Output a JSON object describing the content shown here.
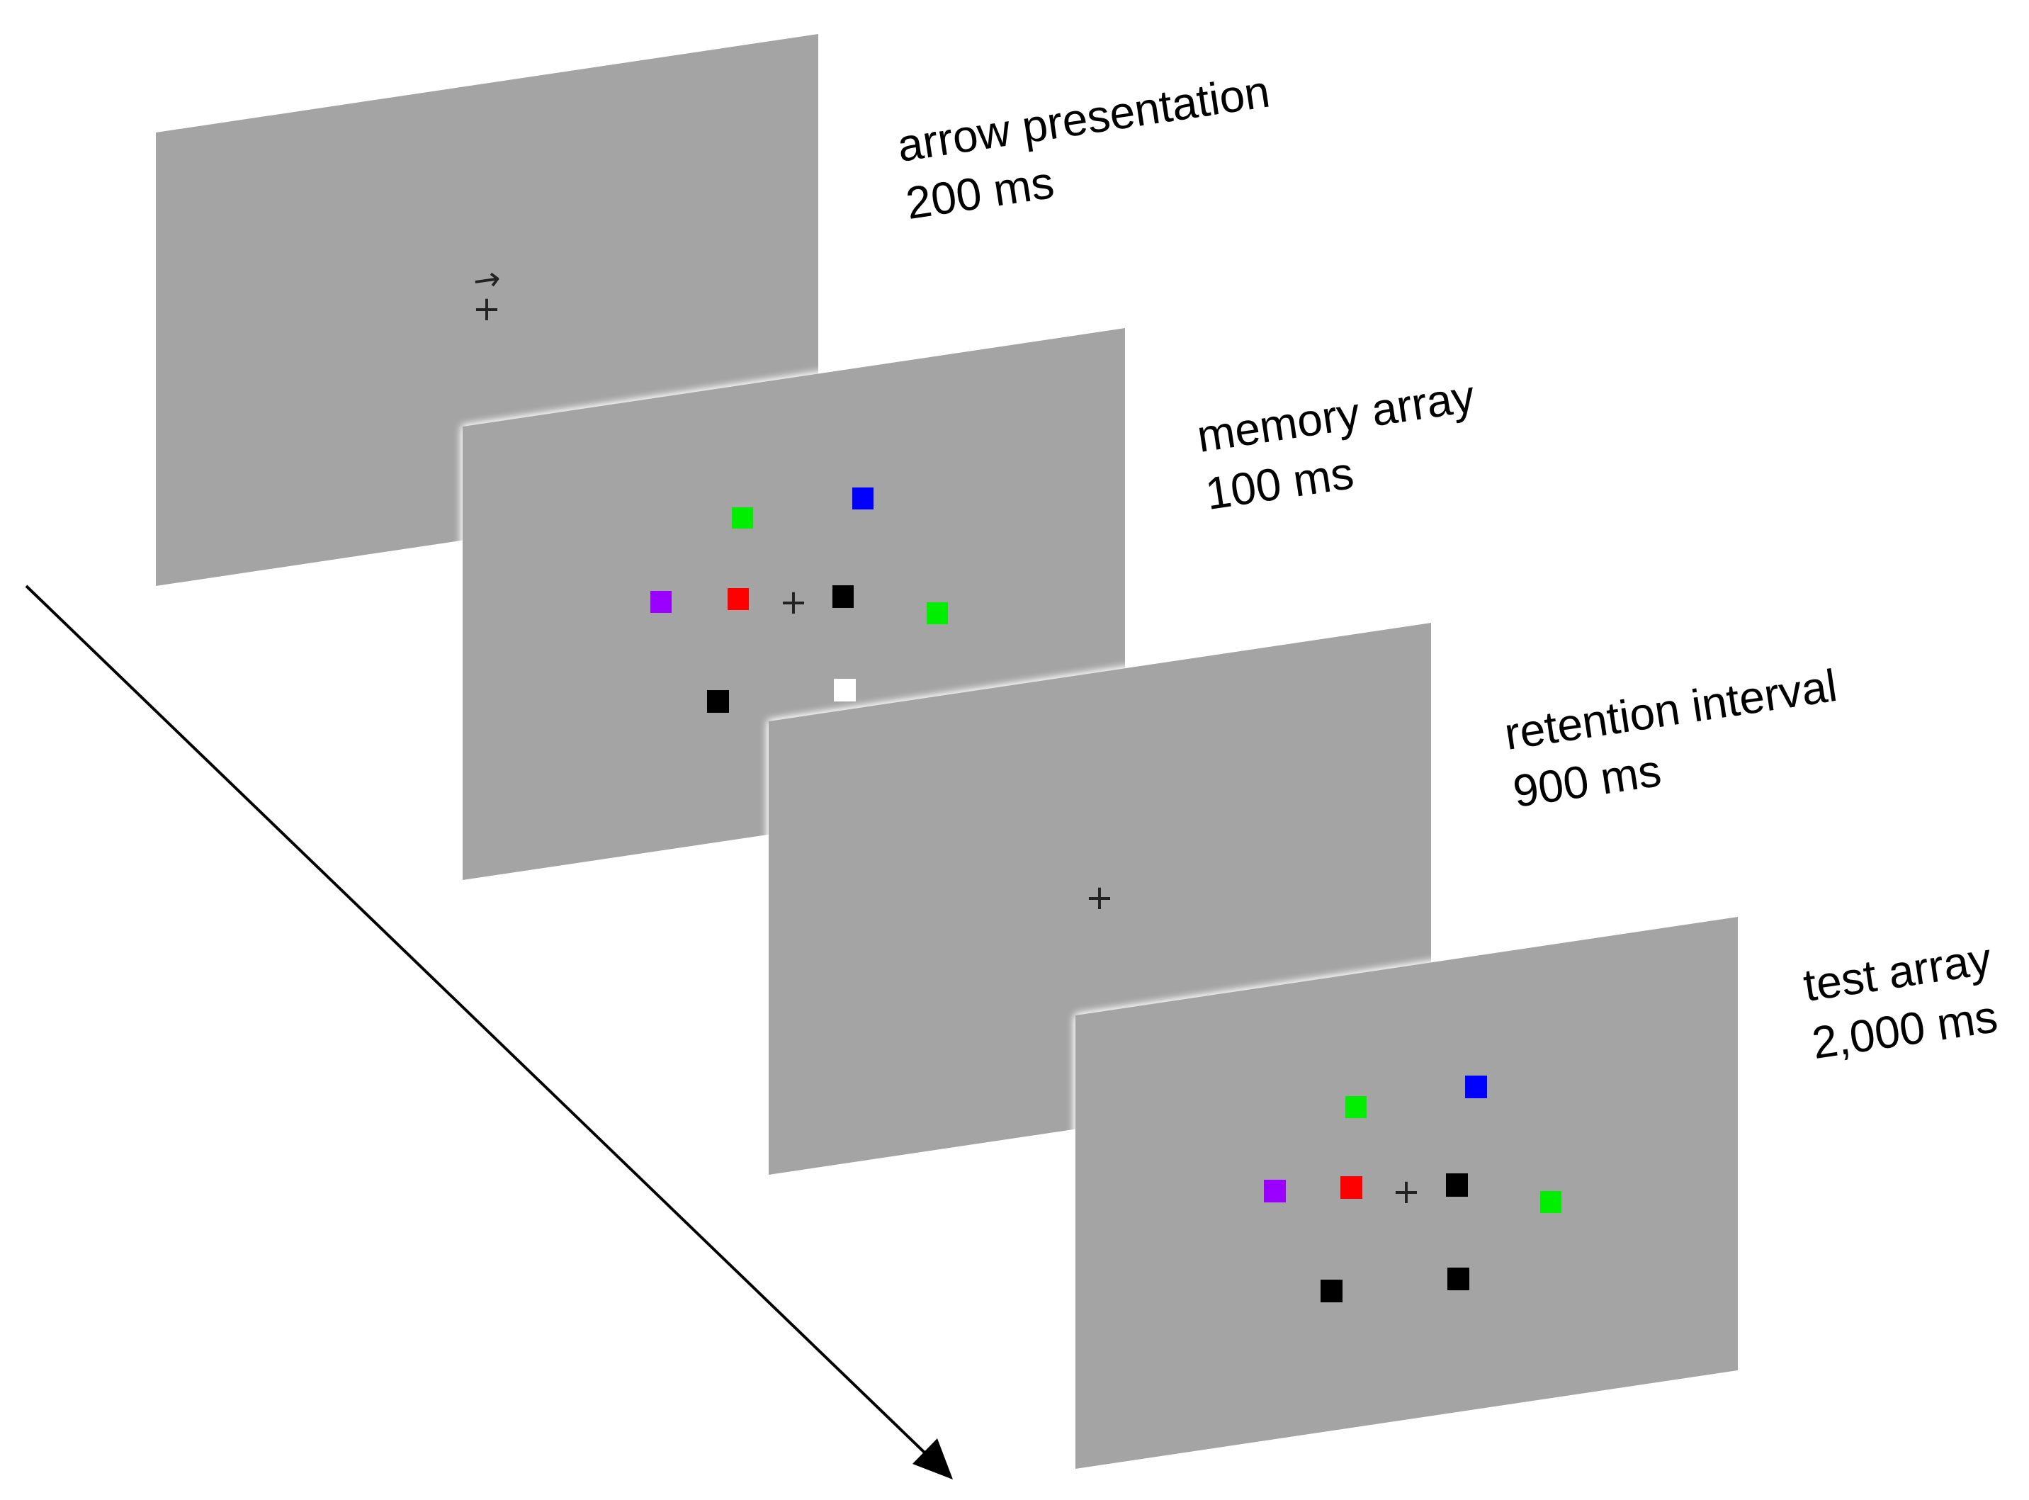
{
  "colors": {
    "background": "#ffffff",
    "screen": "#a4a4a4",
    "arrow": "#000000",
    "glow": "#ffffff"
  },
  "frames": [
    {
      "title": "arrow presentation",
      "duration": "200 ms",
      "fixation": "+",
      "cue": "→",
      "squares": []
    },
    {
      "title": "memory array",
      "duration": "100 ms",
      "fixation": "+",
      "squares": [
        {
          "color": "green",
          "hex": "#00ee00"
        },
        {
          "color": "blue",
          "hex": "#0000ff"
        },
        {
          "color": "purple",
          "hex": "#9a00ff"
        },
        {
          "color": "red",
          "hex": "#ff0000"
        },
        {
          "color": "black",
          "hex": "#000000"
        },
        {
          "color": "green",
          "hex": "#00ee00"
        },
        {
          "color": "black",
          "hex": "#000000"
        },
        {
          "color": "white",
          "hex": "#ffffff"
        }
      ]
    },
    {
      "title": "retention interval",
      "duration": "900 ms",
      "fixation": "+",
      "squares": []
    },
    {
      "title": "test array",
      "duration": "2,000 ms",
      "fixation": "+",
      "squares": [
        {
          "color": "green",
          "hex": "#00ee00"
        },
        {
          "color": "blue",
          "hex": "#0000ff"
        },
        {
          "color": "purple",
          "hex": "#9a00ff"
        },
        {
          "color": "red",
          "hex": "#ff0000"
        },
        {
          "color": "black",
          "hex": "#000000"
        },
        {
          "color": "green",
          "hex": "#00ee00"
        },
        {
          "color": "black",
          "hex": "#000000"
        },
        {
          "color": "black",
          "hex": "#000000"
        }
      ]
    }
  ],
  "time_arrow_icon": "arrow-down-right-icon"
}
